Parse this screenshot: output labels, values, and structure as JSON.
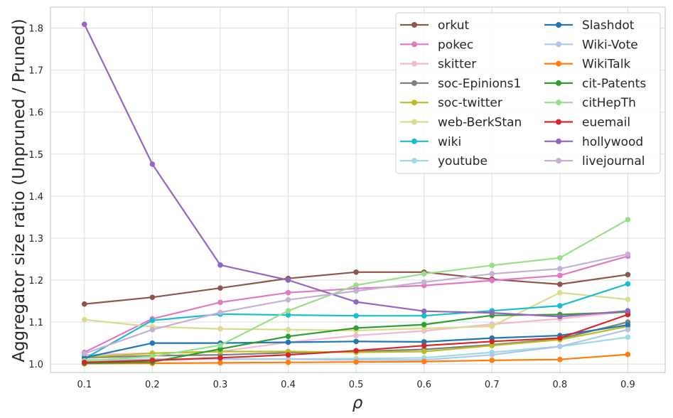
{
  "chart_data": {
    "type": "line",
    "title": "",
    "xlabel": "ρ",
    "ylabel": "Aggregator size ratio (Unpruned / Pruned)",
    "x": [
      0.1,
      0.2,
      0.3,
      0.4,
      0.5,
      0.6,
      0.7,
      0.8,
      0.9
    ],
    "x_tick_labels": [
      "0.1",
      "0.2",
      "0.3",
      "0.4",
      "0.5",
      "0.6",
      "0.7",
      "0.8",
      "0.9"
    ],
    "xlim": [
      0.05,
      0.955
    ],
    "ylim": [
      0.98,
      1.85
    ],
    "yticks": [
      1.0,
      1.1,
      1.2,
      1.3,
      1.4,
      1.5,
      1.6,
      1.7,
      1.8
    ],
    "y_tick_labels": [
      "1.0",
      "1.1",
      "1.2",
      "1.3",
      "1.4",
      "1.5",
      "1.6",
      "1.7",
      "1.8"
    ],
    "grid": true,
    "legend_placement": "top-right, two columns",
    "series": [
      {
        "name": "orkut",
        "color": "#8c564b",
        "values": [
          1.143,
          1.159,
          1.181,
          1.204,
          1.219,
          1.219,
          1.202,
          1.19,
          1.213
        ]
      },
      {
        "name": "pokec",
        "color": "#e377c2",
        "values": [
          1.028,
          1.108,
          1.147,
          1.17,
          1.18,
          1.187,
          1.199,
          1.211,
          1.257
        ]
      },
      {
        "name": "skitter",
        "color": "#f7b6d2",
        "values": [
          1.022,
          1.026,
          1.03,
          1.052,
          1.068,
          1.079,
          1.095,
          1.108,
          1.125
        ]
      },
      {
        "name": "soc-Epinions1",
        "color": "#7f7f7f",
        "values": [
          1.015,
          1.02,
          1.022,
          1.027,
          1.03,
          1.035,
          1.046,
          1.06,
          1.1
        ]
      },
      {
        "name": "soc-twitter",
        "color": "#bcbd22",
        "values": [
          1.016,
          1.026,
          1.03,
          1.03,
          1.028,
          1.03,
          1.044,
          1.058,
          1.09
        ]
      },
      {
        "name": "web-BerkStan",
        "color": "#dbdb8d",
        "values": [
          1.106,
          1.089,
          1.084,
          1.082,
          1.08,
          1.085,
          1.09,
          1.17,
          1.154
        ]
      },
      {
        "name": "wiki",
        "color": "#17becf",
        "values": [
          1.013,
          1.104,
          1.119,
          1.117,
          1.115,
          1.115,
          1.127,
          1.139,
          1.191
        ]
      },
      {
        "name": "youtube",
        "color": "#9edae5",
        "values": [
          1.01,
          1.011,
          1.012,
          1.012,
          1.013,
          1.015,
          1.028,
          1.042,
          1.064
        ]
      },
      {
        "name": "Slashdot",
        "color": "#1f77b4",
        "values": [
          1.015,
          1.05,
          1.05,
          1.052,
          1.054,
          1.053,
          1.062,
          1.068,
          1.093
        ]
      },
      {
        "name": "Wiki-Vote",
        "color": "#aec7e8",
        "values": [
          1.006,
          1.012,
          1.012,
          1.012,
          1.01,
          1.01,
          1.022,
          1.042,
          1.082
        ]
      },
      {
        "name": "WikiTalk",
        "color": "#ff7f0e",
        "values": [
          1.001,
          1.002,
          1.003,
          1.004,
          1.005,
          1.006,
          1.009,
          1.011,
          1.023
        ]
      },
      {
        "name": "cit-Patents",
        "color": "#2ca02c",
        "values": [
          1.002,
          1.005,
          1.036,
          1.066,
          1.086,
          1.094,
          1.116,
          1.118,
          1.124
        ]
      },
      {
        "name": "citHepTh",
        "color": "#98df8a",
        "values": [
          1.008,
          1.018,
          1.045,
          1.127,
          1.188,
          1.215,
          1.235,
          1.253,
          1.344
        ]
      },
      {
        "name": "euemail",
        "color": "#d62728",
        "values": [
          1.004,
          1.009,
          1.015,
          1.022,
          1.032,
          1.044,
          1.054,
          1.062,
          1.118
        ]
      },
      {
        "name": "hollywood",
        "color": "#9467bd",
        "values": [
          1.809,
          1.476,
          1.236,
          1.2,
          1.148,
          1.126,
          1.122,
          1.113,
          1.127
        ]
      },
      {
        "name": "livejournal",
        "color": "#c5b0d5",
        "values": [
          1.025,
          1.082,
          1.123,
          1.153,
          1.174,
          1.195,
          1.215,
          1.227,
          1.262
        ]
      }
    ]
  }
}
